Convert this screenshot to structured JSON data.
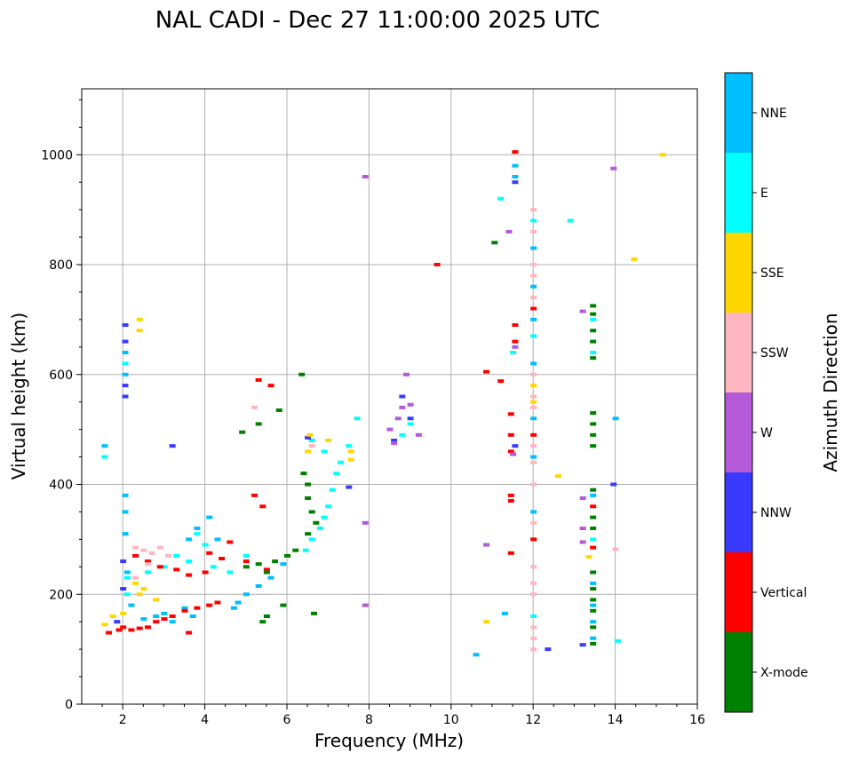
{
  "chart_data": {
    "type": "scatter",
    "title": "NAL CADI - Dec 27 11:00:00 2025 UTC",
    "xlabel": "Frequency (MHz)",
    "ylabel": "Virtual height (km)",
    "xlim": [
      1,
      16
    ],
    "ylim": [
      0,
      1120
    ],
    "xticks": [
      "2",
      "4",
      "6",
      "8",
      "10",
      "12",
      "14",
      "16"
    ],
    "yticks": [
      "0",
      "200",
      "400",
      "600",
      "800",
      "1000"
    ],
    "grid": true,
    "colorbar": {
      "label": "Azimuth Direction",
      "categories": [
        {
          "name": "X-mode",
          "color": "#008000"
        },
        {
          "name": "Vertical",
          "color": "#ff0000"
        },
        {
          "name": "NNW",
          "color": "#3a3aff"
        },
        {
          "name": "W",
          "color": "#b45ad8"
        },
        {
          "name": "SSW",
          "color": "#ffb6c1"
        },
        {
          "name": "SSE",
          "color": "#ffd700"
        },
        {
          "name": "E",
          "color": "#00ffff"
        },
        {
          "name": "NNE",
          "color": "#00bfff"
        }
      ]
    },
    "series": [
      {
        "name": "NNE",
        "points": [
          [
            1.55,
            470
          ],
          [
            2.05,
            640
          ],
          [
            2.05,
            600
          ],
          [
            2.05,
            380
          ],
          [
            2.05,
            350
          ],
          [
            2.05,
            310
          ],
          [
            2.1,
            240
          ],
          [
            2.2,
            180
          ],
          [
            2.5,
            155
          ],
          [
            2.8,
            160
          ],
          [
            3.0,
            165
          ],
          [
            3.2,
            150
          ],
          [
            3.5,
            175
          ],
          [
            3.7,
            160
          ],
          [
            3.6,
            300
          ],
          [
            3.8,
            320
          ],
          [
            4.1,
            340
          ],
          [
            4.3,
            300
          ],
          [
            4.8,
            185
          ],
          [
            5.0,
            200
          ],
          [
            5.3,
            215
          ],
          [
            5.6,
            230
          ],
          [
            5.9,
            255
          ],
          [
            4.7,
            175
          ],
          [
            11.55,
            980
          ],
          [
            11.55,
            960
          ],
          [
            12.0,
            830
          ],
          [
            12.0,
            760
          ],
          [
            12.0,
            700
          ],
          [
            12.0,
            620
          ],
          [
            12.0,
            520
          ],
          [
            12.0,
            450
          ],
          [
            12.0,
            350
          ],
          [
            13.45,
            380
          ],
          [
            13.45,
            220
          ],
          [
            13.45,
            180
          ],
          [
            13.45,
            150
          ],
          [
            13.45,
            120
          ],
          [
            14.0,
            520
          ],
          [
            10.6,
            90
          ],
          [
            11.3,
            165
          ]
        ]
      },
      {
        "name": "E",
        "points": [
          [
            1.55,
            450
          ],
          [
            2.05,
            620
          ],
          [
            2.1,
            230
          ],
          [
            2.1,
            200
          ],
          [
            2.6,
            240
          ],
          [
            3.0,
            250
          ],
          [
            3.3,
            270
          ],
          [
            3.6,
            260
          ],
          [
            4.2,
            250
          ],
          [
            4.6,
            240
          ],
          [
            5.0,
            270
          ],
          [
            3.8,
            310
          ],
          [
            4.0,
            290
          ],
          [
            6.45,
            280
          ],
          [
            6.6,
            300
          ],
          [
            6.8,
            320
          ],
          [
            6.9,
            340
          ],
          [
            7.0,
            360
          ],
          [
            7.1,
            390
          ],
          [
            7.2,
            420
          ],
          [
            6.6,
            480
          ],
          [
            6.9,
            460
          ],
          [
            7.5,
            470
          ],
          [
            7.7,
            520
          ],
          [
            7.3,
            440
          ],
          [
            8.8,
            490
          ],
          [
            9.0,
            510
          ],
          [
            11.2,
            920
          ],
          [
            11.5,
            640
          ],
          [
            12.0,
            880
          ],
          [
            12.0,
            670
          ],
          [
            12.0,
            300
          ],
          [
            12.0,
            160
          ],
          [
            12.9,
            880
          ],
          [
            13.45,
            700
          ],
          [
            13.45,
            640
          ],
          [
            13.45,
            300
          ],
          [
            14.05,
            115
          ]
        ]
      },
      {
        "name": "Vertical",
        "points": [
          [
            1.65,
            130
          ],
          [
            1.9,
            135
          ],
          [
            2.0,
            140
          ],
          [
            2.2,
            135
          ],
          [
            2.4,
            138
          ],
          [
            2.6,
            140
          ],
          [
            2.8,
            150
          ],
          [
            3.0,
            155
          ],
          [
            3.2,
            160
          ],
          [
            3.5,
            170
          ],
          [
            3.8,
            175
          ],
          [
            4.1,
            180
          ],
          [
            4.3,
            185
          ],
          [
            3.6,
            130
          ],
          [
            2.3,
            270
          ],
          [
            2.6,
            260
          ],
          [
            2.9,
            250
          ],
          [
            3.3,
            245
          ],
          [
            3.6,
            235
          ],
          [
            4.0,
            240
          ],
          [
            4.4,
            265
          ],
          [
            5.0,
            260
          ],
          [
            5.5,
            245
          ],
          [
            4.1,
            275
          ],
          [
            4.6,
            295
          ],
          [
            5.3,
            590
          ],
          [
            5.6,
            580
          ],
          [
            5.4,
            360
          ],
          [
            5.2,
            380
          ],
          [
            9.65,
            800
          ],
          [
            11.55,
            1005
          ],
          [
            11.55,
            690
          ],
          [
            11.55,
            660
          ],
          [
            10.85,
            605
          ],
          [
            11.2,
            588
          ],
          [
            11.45,
            528
          ],
          [
            11.45,
            490
          ],
          [
            11.45,
            460
          ],
          [
            11.45,
            380
          ],
          [
            11.45,
            370
          ],
          [
            11.45,
            275
          ],
          [
            12.0,
            720
          ],
          [
            12.0,
            490
          ],
          [
            12.0,
            300
          ],
          [
            13.45,
            360
          ],
          [
            13.45,
            285
          ]
        ]
      },
      {
        "name": "X-mode",
        "points": [
          [
            5.0,
            250
          ],
          [
            5.3,
            255
          ],
          [
            5.7,
            260
          ],
          [
            6.0,
            270
          ],
          [
            6.2,
            280
          ],
          [
            5.5,
            240
          ],
          [
            5.9,
            180
          ],
          [
            5.5,
            160
          ],
          [
            4.9,
            495
          ],
          [
            5.3,
            510
          ],
          [
            5.8,
            535
          ],
          [
            6.35,
            600
          ],
          [
            6.4,
            420
          ],
          [
            6.5,
            400
          ],
          [
            6.5,
            375
          ],
          [
            6.6,
            350
          ],
          [
            6.7,
            330
          ],
          [
            6.5,
            310
          ],
          [
            6.65,
            165
          ],
          [
            11.05,
            840
          ],
          [
            13.45,
            725
          ],
          [
            13.45,
            710
          ],
          [
            13.45,
            680
          ],
          [
            13.45,
            660
          ],
          [
            13.45,
            630
          ],
          [
            13.45,
            530
          ],
          [
            13.45,
            510
          ],
          [
            13.45,
            490
          ],
          [
            13.45,
            470
          ],
          [
            13.45,
            390
          ],
          [
            13.45,
            340
          ],
          [
            13.45,
            320
          ],
          [
            13.45,
            240
          ],
          [
            13.45,
            210
          ],
          [
            13.45,
            190
          ],
          [
            13.45,
            170
          ],
          [
            13.45,
            140
          ],
          [
            13.45,
            110
          ],
          [
            5.4,
            150
          ]
        ]
      },
      {
        "name": "NNW",
        "points": [
          [
            2.05,
            690
          ],
          [
            2.05,
            660
          ],
          [
            2.05,
            580
          ],
          [
            2.05,
            560
          ],
          [
            2.0,
            260
          ],
          [
            2.0,
            210
          ],
          [
            1.85,
            150
          ],
          [
            3.2,
            470
          ],
          [
            6.5,
            485
          ],
          [
            7.5,
            395
          ],
          [
            8.8,
            560
          ],
          [
            9.0,
            520
          ],
          [
            8.6,
            480
          ],
          [
            13.2,
            108
          ],
          [
            13.95,
            400
          ],
          [
            12.35,
            100
          ],
          [
            11.55,
            470
          ],
          [
            11.55,
            950
          ]
        ]
      },
      {
        "name": "W",
        "points": [
          [
            7.9,
            960
          ],
          [
            7.9,
            330
          ],
          [
            7.9,
            180
          ],
          [
            8.5,
            500
          ],
          [
            8.7,
            520
          ],
          [
            8.8,
            540
          ],
          [
            9.0,
            545
          ],
          [
            8.6,
            475
          ],
          [
            9.2,
            490
          ],
          [
            8.9,
            600
          ],
          [
            10.85,
            290
          ],
          [
            11.4,
            860
          ],
          [
            11.5,
            455
          ],
          [
            11.55,
            650
          ],
          [
            13.2,
            715
          ],
          [
            13.2,
            375
          ],
          [
            13.2,
            320
          ],
          [
            13.2,
            295
          ],
          [
            13.95,
            975
          ]
        ]
      },
      {
        "name": "SSW",
        "points": [
          [
            2.3,
            285
          ],
          [
            2.5,
            280
          ],
          [
            2.7,
            275
          ],
          [
            2.9,
            285
          ],
          [
            3.1,
            270
          ],
          [
            2.6,
            255
          ],
          [
            2.3,
            230
          ],
          [
            5.2,
            540
          ],
          [
            6.6,
            470
          ],
          [
            12.0,
            900
          ],
          [
            12.0,
            860
          ],
          [
            12.0,
            800
          ],
          [
            12.0,
            780
          ],
          [
            12.0,
            740
          ],
          [
            12.0,
            600
          ],
          [
            12.0,
            560
          ],
          [
            12.0,
            540
          ],
          [
            12.0,
            470
          ],
          [
            12.0,
            440
          ],
          [
            12.0,
            400
          ],
          [
            12.0,
            330
          ],
          [
            12.0,
            250
          ],
          [
            12.0,
            220
          ],
          [
            12.0,
            200
          ],
          [
            12.0,
            140
          ],
          [
            12.0,
            120
          ],
          [
            12.0,
            100
          ],
          [
            14.0,
            282
          ]
        ]
      },
      {
        "name": "SSE",
        "points": [
          [
            1.55,
            145
          ],
          [
            1.75,
            160
          ],
          [
            2.0,
            165
          ],
          [
            2.4,
            700
          ],
          [
            2.4,
            680
          ],
          [
            2.3,
            220
          ],
          [
            2.5,
            210
          ],
          [
            2.4,
            200
          ],
          [
            2.8,
            190
          ],
          [
            6.5,
            460
          ],
          [
            6.55,
            490
          ],
          [
            7.0,
            480
          ],
          [
            7.55,
            460
          ],
          [
            7.55,
            445
          ],
          [
            10.85,
            150
          ],
          [
            12.0,
            580
          ],
          [
            12.0,
            550
          ],
          [
            12.6,
            415
          ],
          [
            13.35,
            268
          ],
          [
            14.45,
            810
          ],
          [
            15.15,
            1000
          ]
        ]
      }
    ]
  }
}
